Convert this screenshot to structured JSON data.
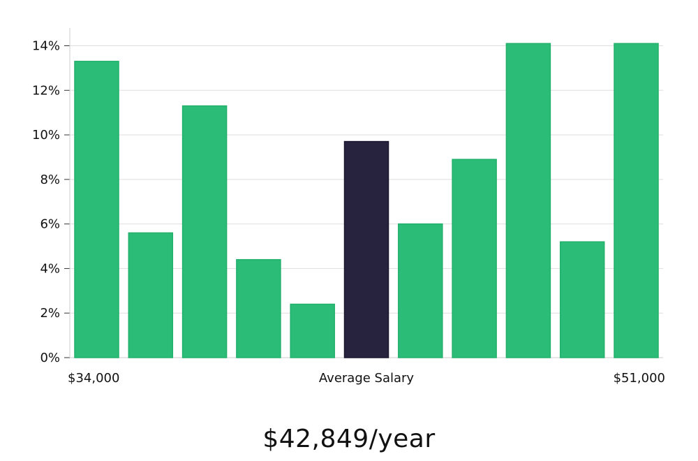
{
  "chart_data": {
    "type": "bar",
    "title": "",
    "xlabel": "Average Salary",
    "ylabel": "",
    "x_range_labels": {
      "min": "$34,000",
      "max": "$51,000"
    },
    "ylim": [
      0,
      14.8
    ],
    "yticks": [
      0,
      2,
      4,
      6,
      8,
      10,
      12,
      14
    ],
    "ytick_labels": [
      "0%",
      "2%",
      "4%",
      "6%",
      "8%",
      "10%",
      "12%",
      "14%"
    ],
    "values": [
      13.3,
      5.6,
      11.3,
      4.4,
      2.4,
      9.7,
      6.0,
      8.9,
      14.1,
      5.2,
      14.1
    ],
    "highlight_index": 5,
    "grid": true,
    "colors": {
      "bar": "#2bbd77",
      "highlight": "#27233f",
      "grid": "#dedede",
      "axis": "#cccccc"
    }
  },
  "summary": {
    "salary_text": "$42,849/year"
  }
}
